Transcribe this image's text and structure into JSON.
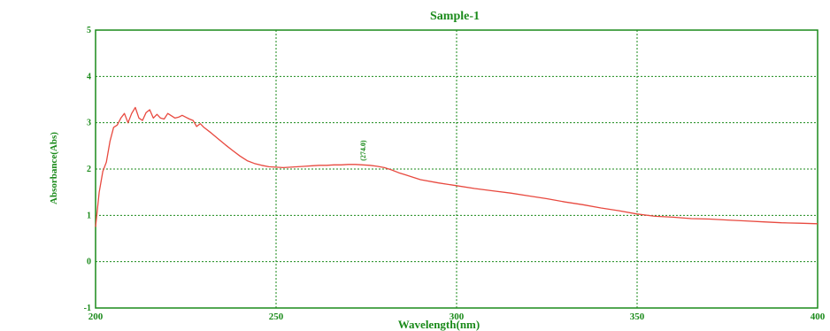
{
  "chart_data": {
    "type": "line",
    "title": "Sample-1",
    "xlabel": "Wavelength(nm)",
    "ylabel": "Absorbance(Abs)",
    "xlim": [
      200,
      400
    ],
    "ylim": [
      -1,
      5
    ],
    "x_ticks": [
      "200",
      "250",
      "300",
      "350",
      "400"
    ],
    "y_ticks": [
      "-1",
      "0",
      "1",
      "2",
      "3",
      "4",
      "5"
    ],
    "grid": true,
    "colors": {
      "axis": "#1a8a1a",
      "grid": "#1a8a1a",
      "line": "#e8493f",
      "text": "#1a8a1a"
    },
    "series": [
      {
        "x": [
          200,
          201,
          202,
          203,
          204,
          205,
          206,
          207,
          208,
          209,
          210,
          211,
          212,
          213,
          214,
          215,
          216,
          217,
          218,
          219,
          220,
          221,
          222,
          223,
          224,
          225,
          226,
          227,
          228,
          229,
          230,
          232,
          234,
          236,
          238,
          240,
          242,
          244,
          246,
          248,
          250,
          252,
          254,
          256,
          258,
          260,
          262,
          264,
          266,
          268,
          270,
          272,
          274,
          276,
          278,
          280,
          282,
          284,
          286,
          288,
          290,
          295,
          300,
          305,
          310,
          315,
          320,
          325,
          330,
          335,
          340,
          345,
          350,
          355,
          360,
          365,
          370,
          375,
          380,
          385,
          390,
          395,
          400
        ],
        "values": [
          0.75,
          1.5,
          1.95,
          2.15,
          2.6,
          2.9,
          2.95,
          3.1,
          3.2,
          3.0,
          3.2,
          3.33,
          3.1,
          3.05,
          3.22,
          3.28,
          3.1,
          3.18,
          3.1,
          3.08,
          3.2,
          3.15,
          3.1,
          3.12,
          3.16,
          3.12,
          3.08,
          3.05,
          2.92,
          2.98,
          2.9,
          2.78,
          2.65,
          2.52,
          2.4,
          2.28,
          2.18,
          2.12,
          2.08,
          2.05,
          2.04,
          2.03,
          2.04,
          2.05,
          2.06,
          2.07,
          2.08,
          2.08,
          2.09,
          2.09,
          2.1,
          2.1,
          2.09,
          2.08,
          2.06,
          2.03,
          1.98,
          1.92,
          1.87,
          1.82,
          1.77,
          1.7,
          1.64,
          1.58,
          1.53,
          1.48,
          1.42,
          1.36,
          1.29,
          1.23,
          1.16,
          1.1,
          1.03,
          0.98,
          0.96,
          0.93,
          0.92,
          0.9,
          0.88,
          0.86,
          0.84,
          0.83,
          0.82
        ]
      }
    ],
    "annotations": [
      {
        "text": "(274.0)",
        "x": 274,
        "y": 2.1
      }
    ]
  }
}
